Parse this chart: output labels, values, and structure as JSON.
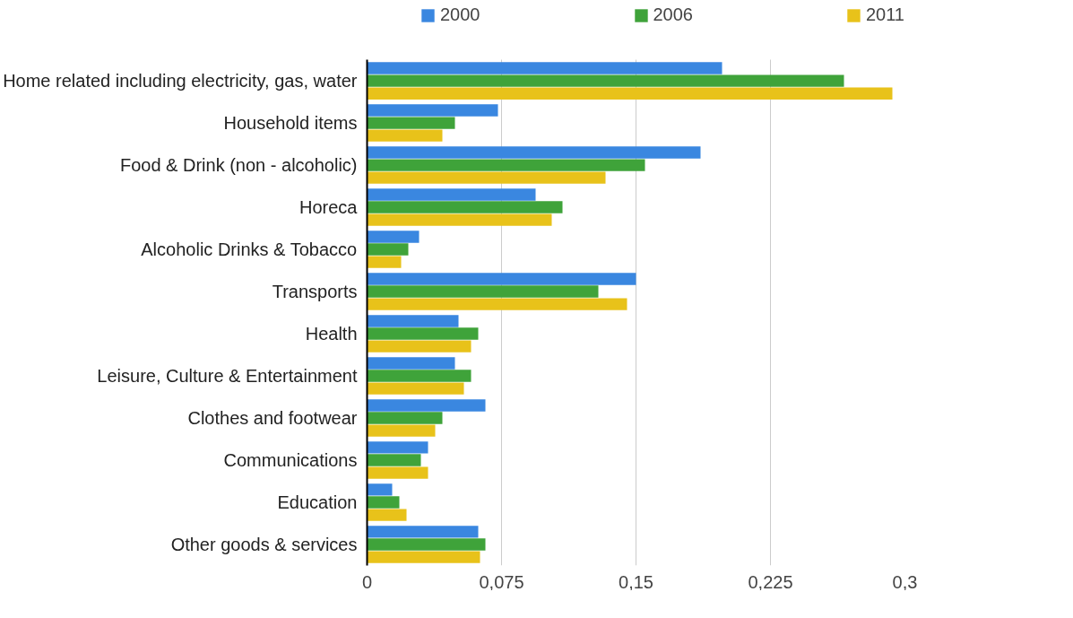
{
  "chart_data": {
    "type": "bar",
    "orientation": "horizontal",
    "categories": [
      "Home related including electricity, gas, water",
      "Household items",
      "Food & Drink (non - alcoholic)",
      "Horeca",
      "Alcoholic Drinks & Tobacco",
      "Transports",
      "Health",
      "Leisure, Culture & Entertainment",
      "Clothes and footwear",
      "Communications",
      "Education",
      "Other goods & services"
    ],
    "series": [
      {
        "name": "2000",
        "color": "#3a87e0",
        "values": [
          0.198,
          0.073,
          0.186,
          0.094,
          0.029,
          0.15,
          0.051,
          0.049,
          0.066,
          0.034,
          0.014,
          0.062
        ]
      },
      {
        "name": "2006",
        "color": "#3fa33a",
        "values": [
          0.266,
          0.049,
          0.155,
          0.109,
          0.023,
          0.129,
          0.062,
          0.058,
          0.042,
          0.03,
          0.018,
          0.066
        ]
      },
      {
        "name": "2011",
        "color": "#e8c21a",
        "values": [
          0.293,
          0.042,
          0.133,
          0.103,
          0.019,
          0.145,
          0.058,
          0.054,
          0.038,
          0.034,
          0.022,
          0.063
        ]
      }
    ],
    "xlim": [
      0,
      0.3
    ],
    "xticks": [
      0,
      {
        "value": 0.075,
        "label": "0,075"
      },
      {
        "value": 0.15,
        "label": "0,15"
      },
      {
        "value": 0.225,
        "label": "0,225"
      },
      {
        "value": 0.3,
        "label": "0,3"
      }
    ],
    "grid": "x",
    "legend": "top"
  }
}
